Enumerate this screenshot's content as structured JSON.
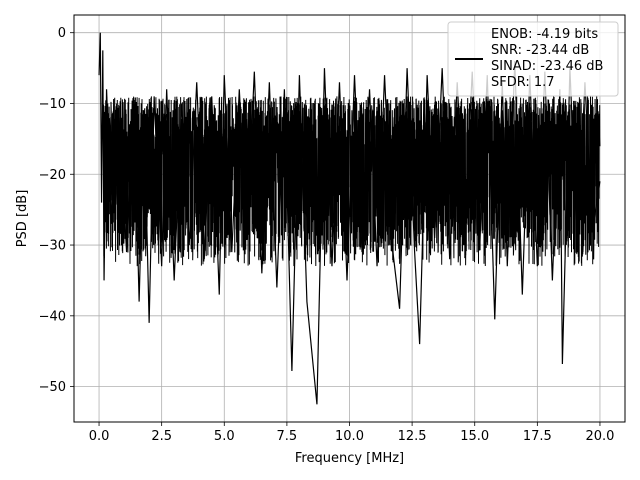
{
  "chart_data": {
    "type": "line",
    "title": "",
    "xlabel": "Frequency [MHz]",
    "ylabel": "PSD [dB]",
    "xlim": [
      -1,
      21
    ],
    "ylim": [
      -55,
      2.5
    ],
    "xticks": [
      0.0,
      2.5,
      5.0,
      7.5,
      10.0,
      12.5,
      15.0,
      17.5,
      20.0
    ],
    "xtick_labels": [
      "0.0",
      "2.5",
      "5.0",
      "7.5",
      "10.0",
      "12.5",
      "15.0",
      "17.5",
      "20.0"
    ],
    "yticks": [
      0,
      -10,
      -20,
      -30,
      -40,
      -50
    ],
    "ytick_labels": [
      "0",
      "−10",
      "−20",
      "−30",
      "−40",
      "−50"
    ],
    "grid": true,
    "legend_position": "top-right",
    "legend_entries": [
      "ENOB: -4.19 bits",
      "SNR: -23.44 dB",
      "SINAD: -23.46 dB",
      "SFDR: 1.7"
    ],
    "line_color": "#000000",
    "series": [
      {
        "x": [
          0.0,
          0.05,
          0.1,
          0.15,
          0.2,
          0.3,
          0.5,
          0.8,
          1.1,
          1.4,
          1.6,
          1.8,
          2.0,
          2.2,
          2.5,
          2.7,
          3.0,
          3.3,
          3.6,
          3.9,
          4.2,
          4.5,
          4.8,
          5.0,
          5.3,
          5.6,
          5.9,
          6.2,
          6.5,
          6.8,
          7.1,
          7.4,
          7.7,
          8.0,
          8.3,
          8.7,
          9.0,
          9.3,
          9.6,
          9.9,
          10.2,
          10.5,
          10.8,
          11.1,
          11.4,
          11.7,
          12.0,
          12.3,
          12.6,
          12.8,
          13.1,
          13.4,
          13.7,
          14.0,
          14.3,
          14.6,
          14.9,
          15.2,
          15.5,
          15.8,
          16.1,
          16.3,
          16.6,
          16.9,
          17.2,
          17.5,
          17.8,
          18.1,
          18.4,
          18.5,
          18.8,
          19.1,
          19.4,
          19.7,
          20.0
        ],
        "y": [
          -6.0,
          0.0,
          -24.0,
          -2.5,
          -35.0,
          -8.0,
          -27.0,
          -12.0,
          -31.0,
          -10.0,
          -38.0,
          -11.0,
          -41.0,
          -9.0,
          -33.0,
          -8.0,
          -35.0,
          -10.0,
          -30.0,
          -7.0,
          -32.0,
          -9.0,
          -37.0,
          -6.0,
          -31.0,
          -8.0,
          -29.0,
          -5.5,
          -34.0,
          -7.0,
          -36.0,
          -8.0,
          -47.8,
          -6.0,
          -38.0,
          -52.5,
          -5.0,
          -33.0,
          -7.0,
          -35.0,
          -6.0,
          -31.0,
          -8.0,
          -33.0,
          -6.0,
          -30.0,
          -39.0,
          -5.0,
          -31.0,
          -44.0,
          -6.0,
          -29.0,
          -5.0,
          -32.0,
          -7.0,
          -28.0,
          -5.5,
          -30.0,
          -6.0,
          -40.5,
          -7.0,
          -33.0,
          -4.0,
          -37.0,
          -6.0,
          -33.0,
          -5.5,
          -35.0,
          -8.0,
          -46.8,
          -5.0,
          -31.0,
          -7.0,
          -28.0,
          -21.0
        ]
      }
    ]
  }
}
